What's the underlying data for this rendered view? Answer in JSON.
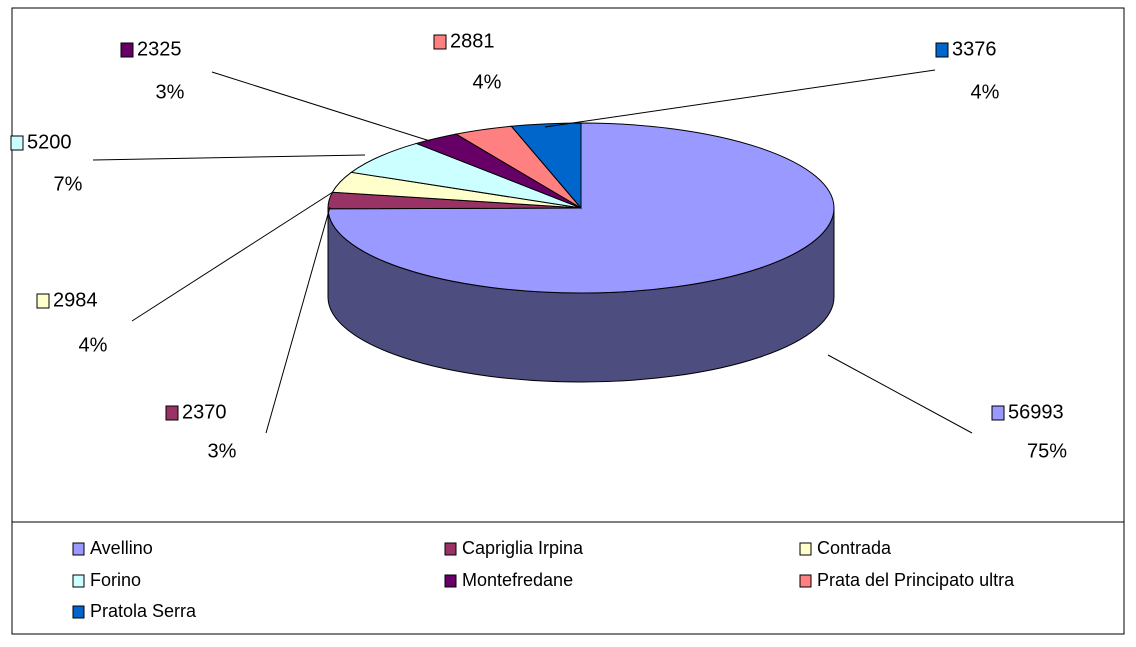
{
  "chart_data": {
    "type": "pie",
    "categories": [
      "Avellino",
      "Capriglia Irpina",
      "Contrada",
      "Forino",
      "Montefredane",
      "Prata del Principato ultra",
      "Pratola Serra"
    ],
    "values": [
      56993,
      2370,
      2984,
      5200,
      2325,
      2881,
      3376
    ],
    "percent_labels": [
      "75%",
      "3%",
      "4%",
      "7%",
      "3%",
      "4%",
      "4%"
    ],
    "colors": [
      "#9999ff",
      "#993366",
      "#ffffcc",
      "#ccffff",
      "#660066",
      "#ff8080",
      "#0066cc"
    ],
    "legend": "bottom"
  }
}
